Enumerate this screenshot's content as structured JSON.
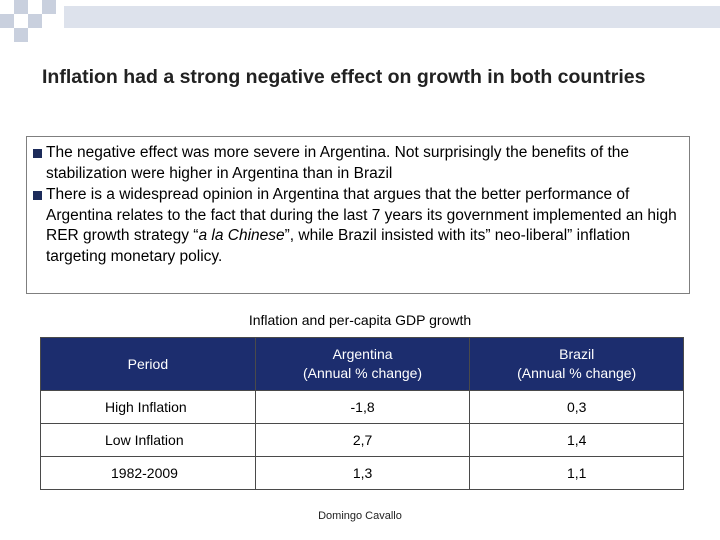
{
  "slide": {
    "title": "Inflation had a strong negative effect on growth in both countries",
    "bullets": [
      {
        "text": "The negative effect was more severe in Argentina. Not surprisingly the benefits of the stabilization were higher in Argentina than in Brazil"
      },
      {
        "text_before": "There is a widespread opinion in Argentina that argues  that the better performance of Argentina relates to the fact that during the last 7 years its government implemented  an high  RER growth strategy “",
        "text_italic": "a la Chinese",
        "text_after": "”, while Brazil insisted with its” neo-liberal”  inflation targeting monetary policy."
      }
    ],
    "table_caption": "Inflation and per-capita GDP growth",
    "table": {
      "headers": [
        {
          "line1": "Period",
          "line2": ""
        },
        {
          "line1": "Argentina",
          "line2": "(Annual % change)"
        },
        {
          "line1": "Brazil",
          "line2": "(Annual % change)"
        }
      ],
      "rows": [
        {
          "period": "High Inflation",
          "argentina": "-1,8",
          "brazil": "0,3"
        },
        {
          "period": "Low Inflation",
          "argentina": "2,7",
          "brazil": "1,4"
        },
        {
          "period": "1982-2009",
          "argentina": "1,3",
          "brazil": "1,1"
        }
      ]
    },
    "footer": "Domingo Cavallo"
  },
  "colors": {
    "header_fill": "#1c2d6e",
    "bullet_mark": "#1c2b5a",
    "header_bar": "#dde2ec"
  }
}
